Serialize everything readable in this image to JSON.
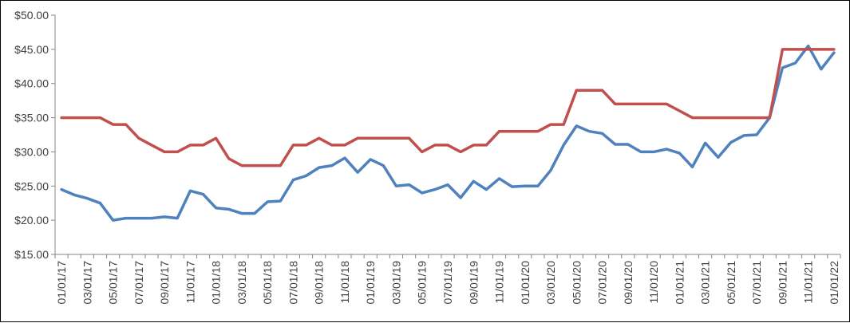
{
  "chart_data": {
    "type": "line",
    "title": "",
    "xlabel": "",
    "ylabel": "",
    "ylim": [
      15,
      50
    ],
    "y_ticks": [
      "$15.00",
      "$20.00",
      "$25.00",
      "$30.00",
      "$35.00",
      "$40.00",
      "$45.00",
      "$50.00"
    ],
    "y_tick_values": [
      15,
      20,
      25,
      30,
      35,
      40,
      45,
      50
    ],
    "x_tick_labels": [
      "01/01/17",
      "03/01/17",
      "05/01/17",
      "07/01/17",
      "09/01/17",
      "11/01/17",
      "01/01/18",
      "03/01/18",
      "05/01/18",
      "07/01/18",
      "09/01/18",
      "11/01/18",
      "01/01/19",
      "03/01/19",
      "05/01/19",
      "07/01/19",
      "09/01/19",
      "11/01/19",
      "01/01/20",
      "03/01/20",
      "05/01/20",
      "07/01/20",
      "09/01/20",
      "11/01/20",
      "01/01/21",
      "03/01/21",
      "05/01/21",
      "07/01/21",
      "09/01/21",
      "11/01/21",
      "01/01/22"
    ],
    "x_tick_every": 2,
    "grid": false,
    "legend": "none",
    "series": [
      {
        "color": "#4F81BD",
        "values": [
          24.5,
          23.7,
          23.2,
          22.5,
          20.0,
          20.3,
          20.3,
          20.3,
          20.5,
          20.3,
          24.3,
          23.8,
          21.8,
          21.6,
          21.0,
          21.0,
          22.7,
          22.8,
          25.9,
          26.5,
          27.7,
          28.0,
          29.1,
          27.0,
          28.9,
          28.0,
          25.0,
          25.2,
          24.0,
          24.5,
          25.2,
          23.3,
          25.7,
          24.5,
          26.1,
          24.9,
          25.0,
          25.0,
          27.3,
          31.0,
          33.8,
          33.0,
          32.7,
          31.1,
          31.1,
          30.0,
          30.0,
          30.4,
          29.8,
          27.8,
          31.3,
          29.2,
          31.4,
          32.4,
          32.5,
          35.0,
          42.3,
          43.0,
          45.5,
          42.1,
          44.5
        ]
      },
      {
        "color": "#C0504D",
        "values": [
          35,
          35,
          35,
          35,
          34,
          34,
          32,
          31,
          30,
          30,
          31,
          31,
          32,
          29,
          28,
          28,
          28,
          28,
          31,
          31,
          32,
          31,
          31,
          32,
          32,
          32,
          32,
          32,
          30,
          31,
          31,
          30,
          31,
          31,
          33,
          33,
          33,
          33,
          34,
          34,
          39,
          39,
          39,
          37,
          37,
          37,
          37,
          37,
          36,
          35,
          35,
          35,
          35,
          35,
          35,
          35,
          45,
          45,
          45,
          45,
          45
        ]
      }
    ]
  }
}
